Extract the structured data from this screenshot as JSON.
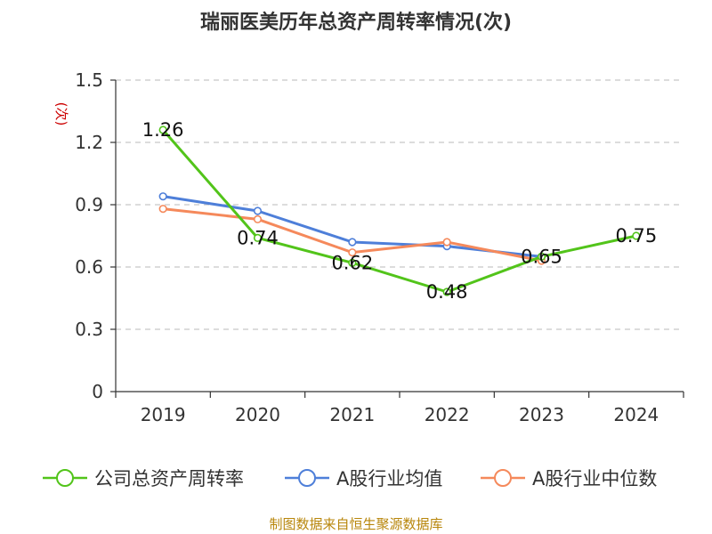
{
  "chart_data": {
    "type": "line",
    "title": "瑞丽医美历年总资产周转率情况(次)",
    "ylabel": "(次)",
    "xlabel": "",
    "categories": [
      "2019",
      "2020",
      "2021",
      "2022",
      "2023",
      "2024"
    ],
    "ylim": [
      0,
      1.5
    ],
    "yticks": [
      "0",
      "0.3",
      "0.6",
      "0.9",
      "1.2",
      "1.5"
    ],
    "grid": true,
    "legend_position": "bottom",
    "series": [
      {
        "name": "公司总资产周转率",
        "color": "#52c41a",
        "values": [
          1.26,
          0.74,
          0.62,
          0.48,
          0.65,
          0.75
        ],
        "labels": [
          "1.26",
          "0.74",
          "0.62",
          "0.48",
          "0.65",
          "0.75"
        ]
      },
      {
        "name": "A股行业均值",
        "color": "#4e7fd9",
        "values": [
          0.94,
          0.87,
          0.72,
          0.7,
          0.65,
          null
        ]
      },
      {
        "name": "A股行业中位数",
        "color": "#f5895b",
        "values": [
          0.88,
          0.83,
          0.67,
          0.72,
          0.63,
          null
        ]
      }
    ]
  },
  "source": "制图数据来自恒生聚源数据库"
}
